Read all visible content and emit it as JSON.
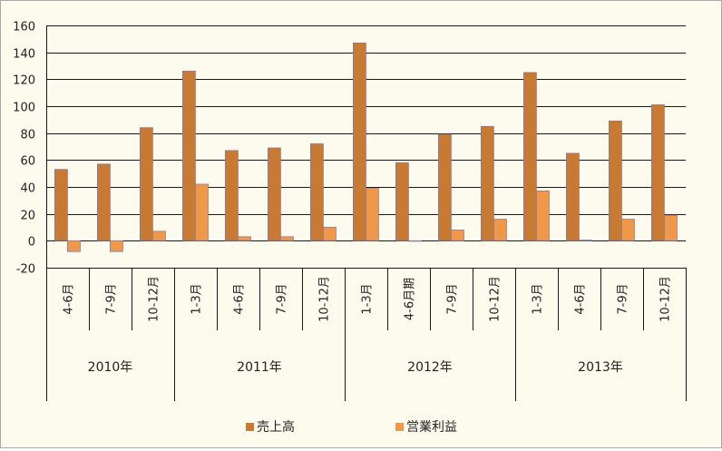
{
  "chart_data": {
    "type": "bar",
    "ylim": [
      -20,
      160
    ],
    "yticks": [
      -20,
      0,
      20,
      40,
      60,
      80,
      100,
      120,
      140,
      160
    ],
    "grid": true,
    "legend_position": "bottom",
    "categories": [
      "4-6月",
      "7-9月",
      "10-12月",
      "1-3月",
      "4-6月",
      "7-9月",
      "10-12月",
      "1-3月",
      "4-6月期",
      "7-9月",
      "10-12月",
      "1-3月",
      "4-6月",
      "7-9月",
      "10-12月"
    ],
    "groups": [
      {
        "label": "2010年",
        "count": 3
      },
      {
        "label": "2011年",
        "count": 4
      },
      {
        "label": "2012年",
        "count": 4
      },
      {
        "label": "2013年",
        "count": 4
      }
    ],
    "series": [
      {
        "name": "売上高",
        "color": "#c87a32",
        "values": [
          53,
          57,
          84,
          126,
          67,
          69,
          72,
          147,
          58,
          79,
          85,
          125,
          65,
          89,
          101
        ]
      },
      {
        "name": "営業利益",
        "color": "#f0984a",
        "values": [
          -8,
          -8,
          7,
          42,
          3,
          3,
          10,
          39,
          0,
          8,
          16,
          37,
          0.5,
          16,
          19
        ]
      }
    ]
  }
}
